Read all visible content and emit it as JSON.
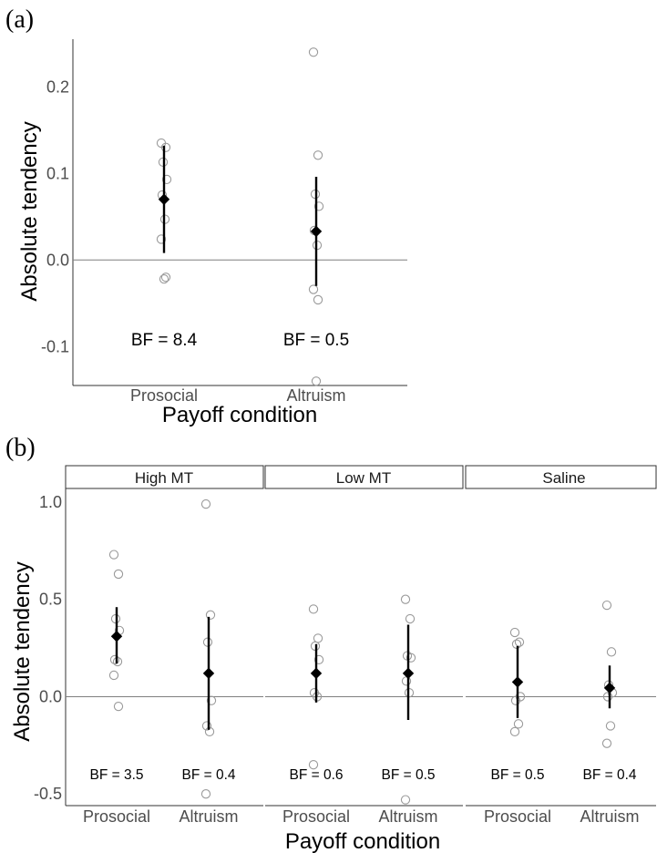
{
  "chart_data": [
    {
      "panel": "(a)",
      "type": "scatter",
      "xlabel": "Payoff condition",
      "ylabel": "Absolute tendency",
      "categories": [
        "Prosocial",
        "Altruism"
      ],
      "ylim": [
        -0.145,
        0.255
      ],
      "yticks": [
        -0.1,
        0.0,
        0.1,
        0.2
      ],
      "ytick_labels": [
        "-0.1",
        "0.0",
        "0.1",
        "0.2"
      ],
      "reference_line": 0,
      "groups": [
        {
          "category": "Prosocial",
          "points": [
            0.135,
            0.13,
            0.113,
            0.093,
            0.075,
            0.047,
            0.024,
            -0.02,
            -0.022
          ],
          "mean": 0.07,
          "ci": [
            0.008,
            0.132
          ],
          "bf_label": "BF = 8.4"
        },
        {
          "category": "Altruism",
          "points": [
            0.24,
            0.121,
            0.076,
            0.062,
            0.034,
            0.017,
            -0.034,
            -0.046,
            -0.14
          ],
          "mean": 0.033,
          "ci": [
            -0.03,
            0.096
          ],
          "bf_label": "BF = 0.5"
        }
      ]
    },
    {
      "panel": "(b)",
      "type": "scatter",
      "xlabel": "Payoff condition",
      "ylabel": "Absolute tendency",
      "ylim": [
        -0.56,
        1.07
      ],
      "yticks": [
        -0.5,
        0.0,
        0.5,
        1.0
      ],
      "ytick_labels": [
        "-0.5",
        "0.0",
        "0.5",
        "1.0"
      ],
      "reference_line": 0,
      "facets": [
        {
          "strip": "High MT",
          "categories": [
            "Prosocial",
            "Altruism"
          ],
          "groups": [
            {
              "category": "Prosocial",
              "points": [
                0.73,
                0.63,
                0.4,
                0.34,
                0.19,
                0.18,
                0.11,
                -0.05
              ],
              "mean": 0.31,
              "ci": [
                0.17,
                0.46
              ],
              "bf_label": "BF = 3.5"
            },
            {
              "category": "Altruism",
              "points": [
                0.99,
                0.42,
                0.28,
                -0.02,
                -0.15,
                -0.18,
                -0.5
              ],
              "mean": 0.12,
              "ci": [
                -0.17,
                0.41
              ],
              "bf_label": "BF = 0.4"
            }
          ]
        },
        {
          "strip": "Low MT",
          "categories": [
            "Prosocial",
            "Altruism"
          ],
          "groups": [
            {
              "category": "Prosocial",
              "points": [
                0.45,
                0.3,
                0.26,
                0.19,
                0.02,
                0.0,
                -0.35
              ],
              "mean": 0.12,
              "ci": [
                -0.03,
                0.27
              ],
              "bf_label": "BF = 0.6"
            },
            {
              "category": "Altruism",
              "points": [
                0.5,
                0.4,
                0.21,
                0.2,
                0.08,
                0.02,
                -0.53
              ],
              "mean": 0.12,
              "ci": [
                -0.12,
                0.37
              ],
              "bf_label": "BF = 0.5"
            }
          ]
        },
        {
          "strip": "Saline",
          "categories": [
            "Prosocial",
            "Altruism"
          ],
          "groups": [
            {
              "category": "Prosocial",
              "points": [
                0.33,
                0.28,
                0.27,
                0.0,
                -0.02,
                -0.14,
                -0.18
              ],
              "mean": 0.075,
              "ci": [
                -0.11,
                0.26
              ],
              "bf_label": "BF = 0.5"
            },
            {
              "category": "Altruism",
              "points": [
                0.47,
                0.23,
                0.06,
                0.02,
                0.0,
                -0.15,
                -0.24
              ],
              "mean": 0.045,
              "ci": [
                -0.06,
                0.16
              ],
              "bf_label": "BF = 0.4"
            }
          ]
        }
      ]
    }
  ]
}
